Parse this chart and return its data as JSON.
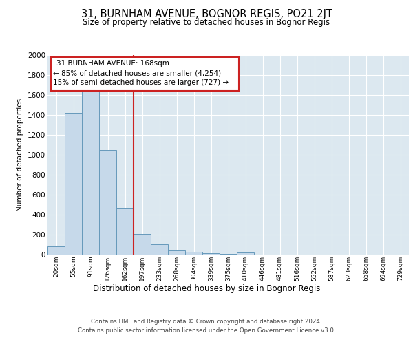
{
  "title1": "31, BURNHAM AVENUE, BOGNOR REGIS, PO21 2JT",
  "title2": "Size of property relative to detached houses in Bognor Regis",
  "xlabel": "Distribution of detached houses by size in Bognor Regis",
  "ylabel": "Number of detached properties",
  "footnote1": "Contains HM Land Registry data © Crown copyright and database right 2024.",
  "footnote2": "Contains public sector information licensed under the Open Government Licence v3.0.",
  "categories": [
    "20sqm",
    "55sqm",
    "91sqm",
    "126sqm",
    "162sqm",
    "197sqm",
    "233sqm",
    "268sqm",
    "304sqm",
    "339sqm",
    "375sqm",
    "410sqm",
    "446sqm",
    "481sqm",
    "516sqm",
    "552sqm",
    "587sqm",
    "623sqm",
    "658sqm",
    "694sqm",
    "729sqm"
  ],
  "values": [
    85,
    1420,
    1640,
    1050,
    460,
    205,
    105,
    42,
    28,
    15,
    10,
    22,
    0,
    0,
    0,
    0,
    0,
    0,
    0,
    0,
    0
  ],
  "bar_color": "#c6d9ea",
  "bar_edge_color": "#6699bb",
  "annotation_text_line1": "31 BURNHAM AVENUE: 168sqm",
  "annotation_text_line2": "← 85% of detached houses are smaller (4,254)",
  "annotation_text_line3": "15% of semi-detached houses are larger (727) →",
  "vline_color": "#cc2222",
  "vline_x_index": 4.5,
  "box_edge_color": "#cc2222",
  "ylim": [
    0,
    2000
  ],
  "yticks": [
    0,
    200,
    400,
    600,
    800,
    1000,
    1200,
    1400,
    1600,
    1800,
    2000
  ],
  "fig_bg_color": "#ffffff",
  "plot_bg_color": "#dce8f0"
}
